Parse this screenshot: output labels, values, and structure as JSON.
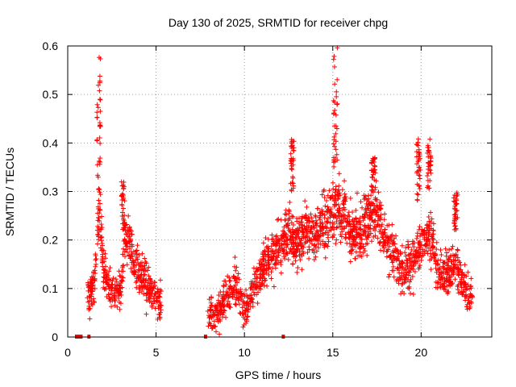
{
  "chart_data": {
    "type": "scatter",
    "title": "Day 130 of 2025, SRMTID for receiver chpg",
    "xlabel": "GPS time / hours",
    "ylabel": "SRMTID / TECUs",
    "xlim": [
      0,
      24
    ],
    "ylim": [
      0,
      0.6
    ],
    "x_ticks": [
      0,
      5,
      10,
      15,
      20
    ],
    "x_tick_labels": [
      "0",
      "5",
      "10",
      "15",
      "20"
    ],
    "y_ticks": [
      0,
      0.1,
      0.2,
      0.3,
      0.4,
      0.5,
      0.6
    ],
    "y_tick_labels": [
      "0",
      "0.1",
      "0.2",
      "0.3",
      "0.4",
      "0.5",
      "0.6"
    ],
    "grid": true,
    "marker": "+",
    "color": "#ff0000",
    "zero_markers": [
      0.5,
      0.6,
      0.75,
      1.2,
      7.8,
      12.2
    ],
    "envelope": [
      [
        1.1,
        0.08
      ],
      [
        1.5,
        0.1
      ],
      [
        1.8,
        0.28
      ],
      [
        2.0,
        0.14
      ],
      [
        2.5,
        0.09
      ],
      [
        3.0,
        0.1
      ],
      [
        3.3,
        0.22
      ],
      [
        3.8,
        0.15
      ],
      [
        4.3,
        0.12
      ],
      [
        4.8,
        0.09
      ],
      [
        5.3,
        0.07
      ],
      [
        7.9,
        0.05
      ],
      [
        8.5,
        0.05
      ],
      [
        9.0,
        0.08
      ],
      [
        9.5,
        0.11
      ],
      [
        10.0,
        0.05
      ],
      [
        10.5,
        0.1
      ],
      [
        11.0,
        0.14
      ],
      [
        11.5,
        0.17
      ],
      [
        12.0,
        0.18
      ],
      [
        12.5,
        0.22
      ],
      [
        13.0,
        0.2
      ],
      [
        13.5,
        0.22
      ],
      [
        14.0,
        0.21
      ],
      [
        14.5,
        0.23
      ],
      [
        15.0,
        0.25
      ],
      [
        15.3,
        0.27
      ],
      [
        15.6,
        0.26
      ],
      [
        16.0,
        0.21
      ],
      [
        16.5,
        0.22
      ],
      [
        17.0,
        0.24
      ],
      [
        17.5,
        0.25
      ],
      [
        18.0,
        0.2
      ],
      [
        18.5,
        0.17
      ],
      [
        19.0,
        0.14
      ],
      [
        19.5,
        0.15
      ],
      [
        20.0,
        0.2
      ],
      [
        20.5,
        0.21
      ],
      [
        21.0,
        0.13
      ],
      [
        21.5,
        0.13
      ],
      [
        22.0,
        0.15
      ],
      [
        22.5,
        0.1
      ],
      [
        22.9,
        0.08
      ]
    ],
    "bursts": [
      {
        "x": 1.75,
        "low": 0.3,
        "high": 0.59
      },
      {
        "x": 3.15,
        "low": 0.22,
        "high": 0.32
      },
      {
        "x": 12.7,
        "low": 0.3,
        "high": 0.41
      },
      {
        "x": 15.15,
        "low": 0.35,
        "high": 0.6
      },
      {
        "x": 17.3,
        "low": 0.3,
        "high": 0.37
      },
      {
        "x": 19.85,
        "low": 0.28,
        "high": 0.41
      },
      {
        "x": 20.45,
        "low": 0.3,
        "high": 0.41
      },
      {
        "x": 21.95,
        "low": 0.22,
        "high": 0.3
      }
    ],
    "spread": 0.05,
    "seed": 130
  }
}
